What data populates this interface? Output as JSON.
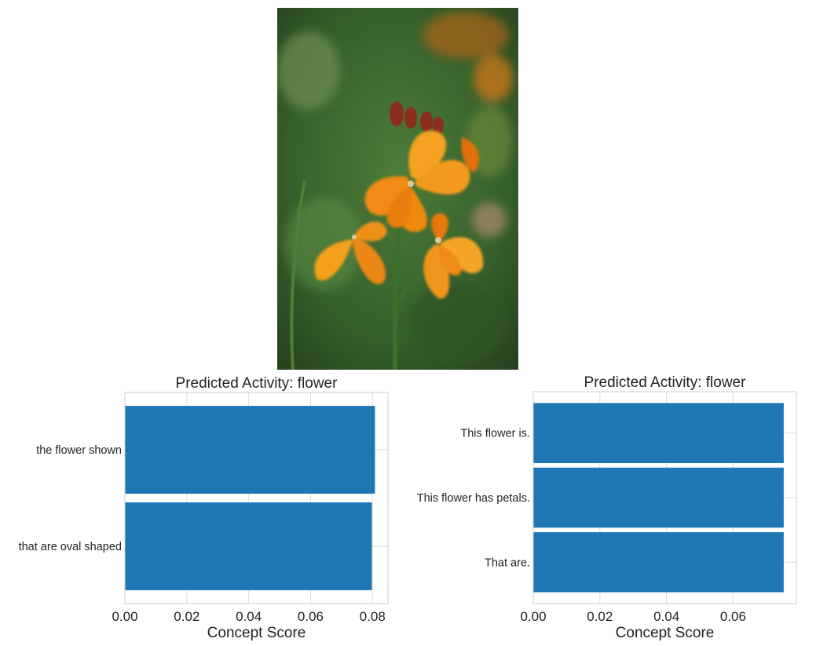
{
  "image": {
    "subject": "orange-flower-photo",
    "colors": {
      "background": "#3f6a32",
      "petal": "#f29a1a",
      "petal_dark": "#d9670f",
      "bud": "#8a2f1e"
    }
  },
  "chart_data": [
    {
      "type": "bar",
      "orientation": "horizontal",
      "title": "Predicted Activity: flower",
      "xlabel": "Concept Score",
      "ylabel": "",
      "categories": [
        "the flower shown",
        "that are oval shaped"
      ],
      "values": [
        0.0808,
        0.0798
      ],
      "xlim": [
        0,
        0.085
      ],
      "xticks": [
        0.0,
        0.02,
        0.04,
        0.06,
        0.08
      ],
      "xtick_labels": [
        "0.00",
        "0.02",
        "0.04",
        "0.06",
        "0.08"
      ],
      "grid": true,
      "color": "#1f77b4"
    },
    {
      "type": "bar",
      "orientation": "horizontal",
      "title": "Predicted Activity: flower",
      "xlabel": "Concept Score",
      "ylabel": "",
      "categories": [
        "This flower is.",
        "This flower has petals.",
        "That are."
      ],
      "values": [
        0.0752,
        0.0752,
        0.0752
      ],
      "xlim": [
        0,
        0.079
      ],
      "xticks": [
        0.0,
        0.02,
        0.04,
        0.06
      ],
      "xtick_labels": [
        "0.00",
        "0.02",
        "0.04",
        "0.06"
      ],
      "grid": true,
      "color": "#1f77b4"
    }
  ]
}
